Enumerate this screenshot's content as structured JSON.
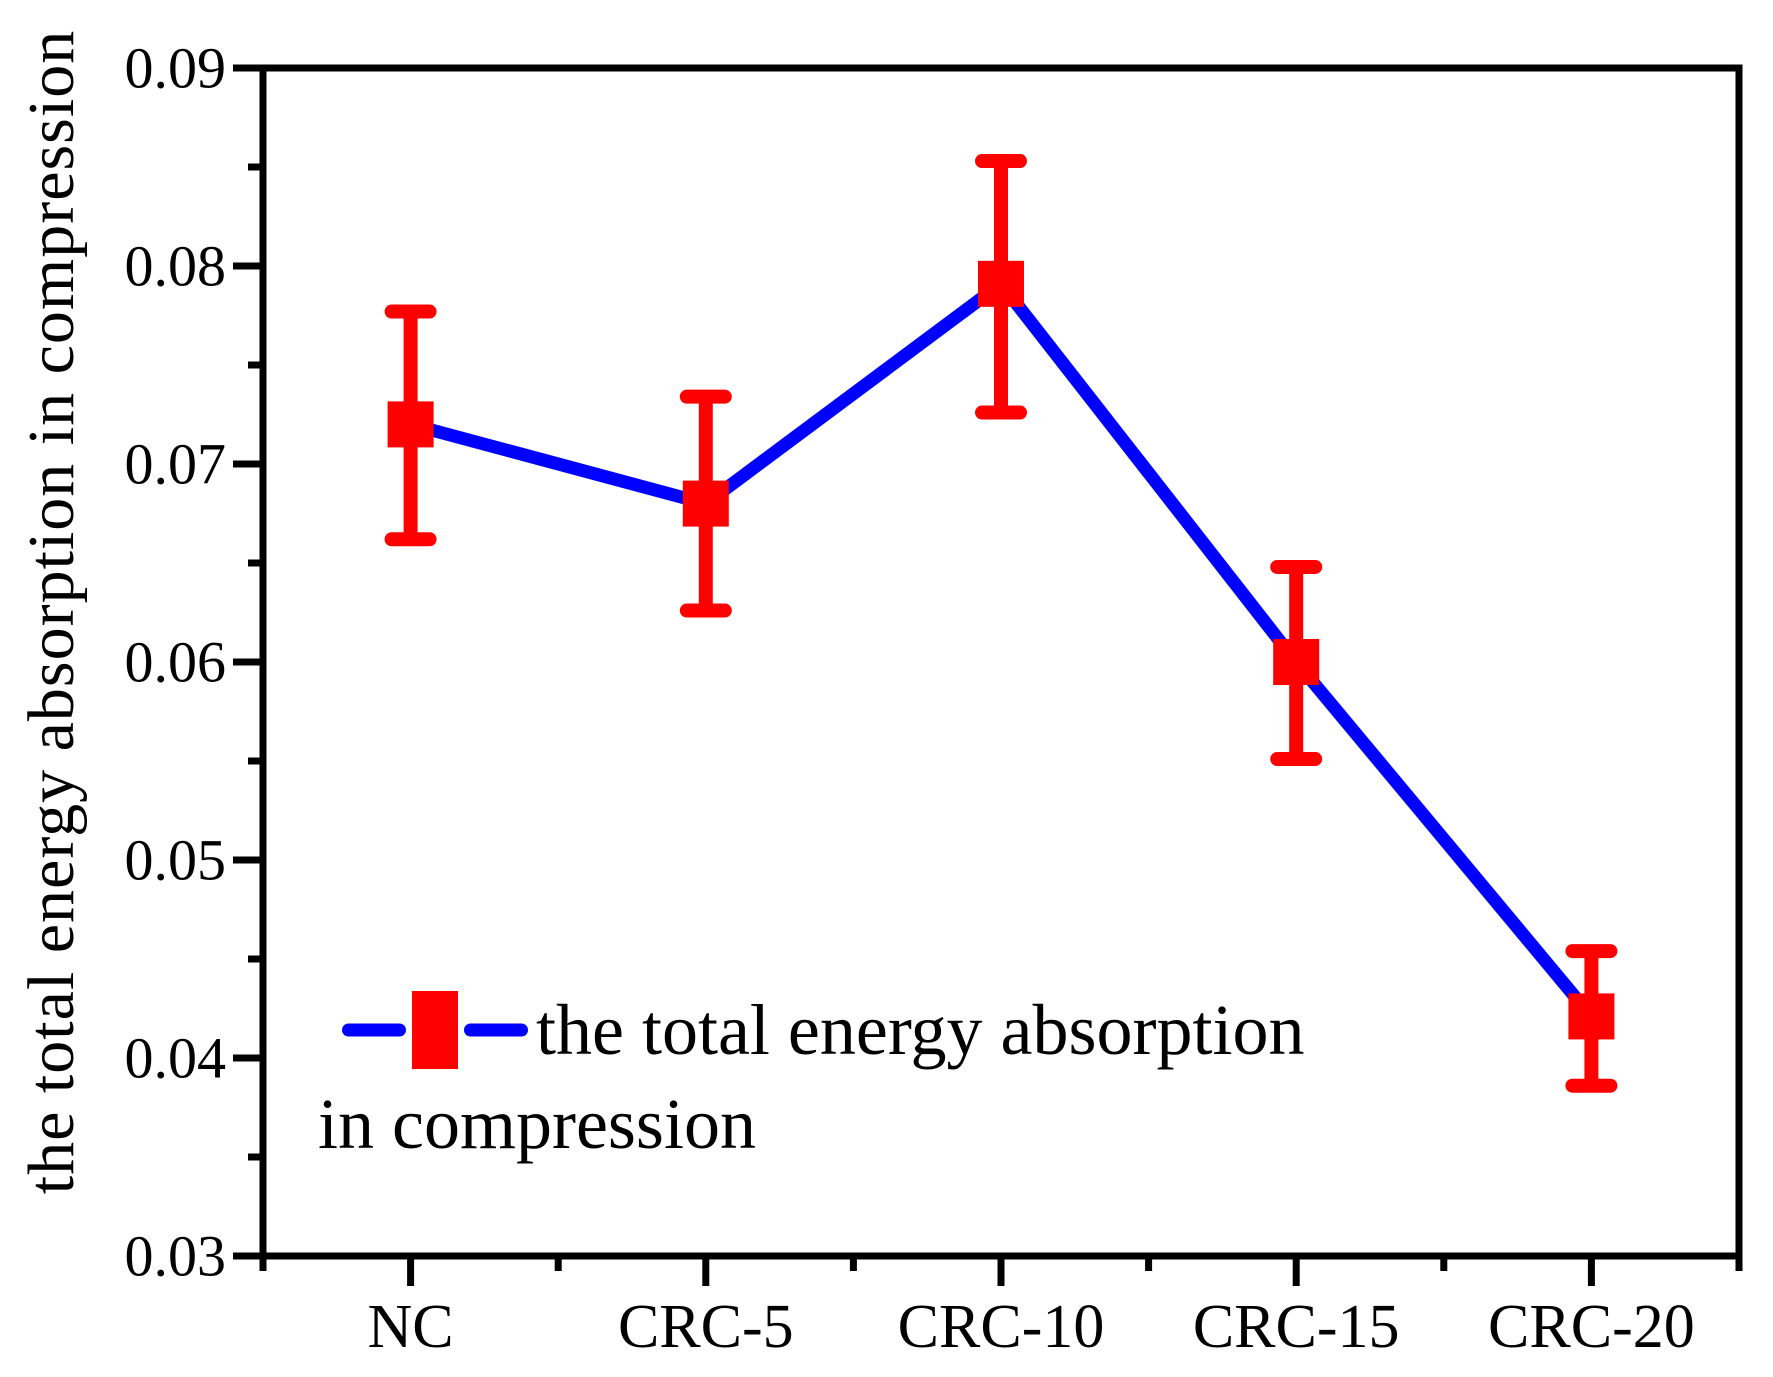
{
  "figure": {
    "background": "#ffffff"
  },
  "chart_data": {
    "type": "line",
    "title": "",
    "categories": [
      "NC",
      "CRC-5",
      "CRC-10",
      "CRC-15",
      "CRC-20"
    ],
    "series": [
      {
        "name": "the total energy absorption in compression",
        "values": [
          0.072,
          0.068,
          0.0791,
          0.06,
          0.0421
        ],
        "error_plus": [
          0.0057,
          0.0054,
          0.0062,
          0.0048,
          0.0033
        ],
        "error_minus": [
          0.0058,
          0.0054,
          0.0065,
          0.0049,
          0.0035
        ],
        "marker": "square",
        "marker_color": "#ff0000",
        "line_color": "#0000ff"
      }
    ],
    "xlabel": "",
    "ylabel": "the total energy absorption in compression",
    "ylim": [
      0.03,
      0.09
    ],
    "y_major_step": 0.01,
    "y_minor_step": 0.005,
    "y_tick_labels": [
      "0.03",
      "0.04",
      "0.05",
      "0.06",
      "0.07",
      "0.08",
      "0.09"
    ],
    "grid": false,
    "axis_color": "#000000",
    "legend": {
      "position": "inside-bottom-left",
      "line1": "the total energy absorption",
      "line2": "in compression"
    }
  }
}
